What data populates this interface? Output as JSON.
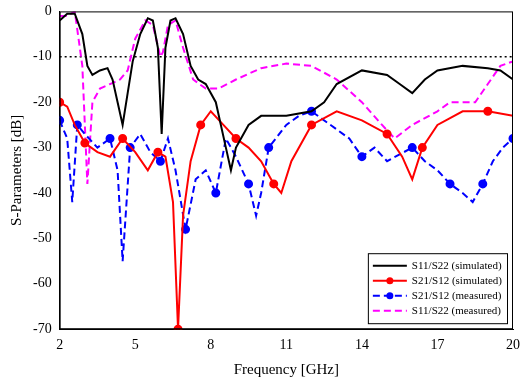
{
  "chart_data": {
    "type": "line",
    "x_label": "Frequency [GHz]",
    "y_label": "S-Parameters [dB]",
    "xlim": [
      2,
      20
    ],
    "ylim": [
      -70,
      0
    ],
    "xticks": [
      2,
      5,
      8,
      11,
      14,
      17,
      20
    ],
    "yticks": [
      -70,
      -60,
      -50,
      -40,
      -30,
      -20,
      -10,
      0
    ],
    "grid": false,
    "legend": "lower right",
    "series": [
      {
        "name": "S11/S22 (simulated)",
        "color": "#000000",
        "line_style": "solid",
        "marker": "none",
        "x": [
          2,
          2.3,
          2.6,
          2.9,
          3.1,
          3.3,
          3.6,
          3.9,
          4.1,
          4.3,
          4.5,
          4.7,
          4.9,
          5.2,
          5.5,
          5.7,
          5.9,
          6.05,
          6.2,
          6.4,
          6.6,
          6.9,
          7.2,
          7.5,
          7.8,
          8.2,
          8.6,
          8.8,
          9.0,
          9.5,
          10,
          11,
          12,
          12.5,
          13,
          14,
          15,
          15.5,
          16,
          16.5,
          17,
          18,
          19,
          19.5,
          20
        ],
        "values": [
          -2,
          -0.5,
          -0.5,
          -5,
          -12,
          -14,
          -13,
          -12.5,
          -15,
          -20,
          -25,
          -18,
          -11,
          -5,
          -1.5,
          -2,
          -8,
          -27,
          -8,
          -2,
          -1.5,
          -5,
          -12,
          -15,
          -16,
          -20,
          -30,
          -35,
          -30,
          -25,
          -23,
          -23,
          -22,
          -20,
          -16,
          -13,
          -14,
          -16,
          -18,
          -15,
          -13,
          -12,
          -12.5,
          -13,
          -15
        ]
      },
      {
        "name": "S21/S12 (simulated)",
        "color": "#ff0000",
        "line_style": "solid",
        "marker": "circle",
        "x": [
          2,
          2.3,
          2.6,
          3,
          3.5,
          4,
          4.5,
          5,
          5.5,
          5.9,
          6.2,
          6.5,
          6.7,
          6.9,
          7.2,
          7.6,
          8,
          8.5,
          9,
          9.5,
          10,
          10.5,
          10.8,
          11.2,
          12,
          13,
          14,
          15,
          15.6,
          16,
          16.4,
          17,
          18,
          19,
          20
        ],
        "values": [
          -20,
          -21,
          -25,
          -29,
          -31,
          -32,
          -28,
          -31,
          -35,
          -31,
          -32,
          -42,
          -70,
          -45,
          -33,
          -25,
          -22,
          -25,
          -28,
          -30,
          -33,
          -38,
          -40,
          -33,
          -25,
          -22,
          -24,
          -27,
          -32,
          -37,
          -30,
          -25,
          -22,
          -22,
          -23
        ]
      },
      {
        "name": "S21/S12 (measured)",
        "color": "#0000ff",
        "line_style": "dashed",
        "marker": "circle",
        "x": [
          2,
          2.3,
          2.5,
          2.7,
          3,
          3.5,
          4,
          4.3,
          4.5,
          4.8,
          5.2,
          5.6,
          6,
          6.3,
          6.6,
          7.0,
          7.4,
          7.8,
          8.2,
          8.6,
          9,
          9.5,
          9.8,
          10,
          10.3,
          11,
          11.5,
          12,
          13,
          13.5,
          14,
          14.5,
          15,
          16,
          16.5,
          17,
          17.5,
          18,
          18.4,
          18.8,
          19.2,
          19.6,
          20
        ],
        "values": [
          -24,
          -28,
          -42,
          -25,
          -27,
          -30,
          -28,
          -35,
          -55,
          -30,
          -27,
          -31,
          -33,
          -28,
          -35,
          -48,
          -37,
          -35,
          -40,
          -28,
          -32,
          -38,
          -45,
          -40,
          -30,
          -25,
          -23,
          -22,
          -26,
          -28,
          -32,
          -30,
          -33,
          -30,
          -33,
          -35,
          -38,
          -40,
          -42,
          -38,
          -33,
          -30,
          -28
        ]
      },
      {
        "name": "S11/S22 (measured)",
        "color": "#ff00ff",
        "line_style": "dashed",
        "marker": "none",
        "x": [
          2,
          2.3,
          2.6,
          2.9,
          3.1,
          3.3,
          3.6,
          4,
          4.4,
          4.7,
          5.0,
          5.4,
          5.7,
          6.0,
          6.1,
          6.3,
          6.6,
          6.9,
          7.3,
          7.8,
          8.3,
          9,
          10,
          11,
          12,
          13,
          14,
          14.8,
          15.3,
          16,
          17,
          17.5,
          18,
          18.5,
          19,
          19.5,
          20
        ],
        "values": [
          -1,
          -1,
          0,
          -12,
          -38,
          -20,
          -17,
          -16,
          -15,
          -13,
          -6,
          -2,
          -3,
          -10,
          -9,
          -3,
          -2,
          -8,
          -15,
          -17,
          -17,
          -15,
          -12.5,
          -11.5,
          -12,
          -15,
          -20,
          -25,
          -28,
          -25,
          -22,
          -20,
          -20,
          -20,
          -16,
          -12,
          -11
        ]
      },
      {
        "color": "#000000",
        "line_style": "dotted",
        "marker": "none",
        "x": [
          2,
          20
        ],
        "values": [
          -10,
          -10
        ]
      }
    ]
  }
}
